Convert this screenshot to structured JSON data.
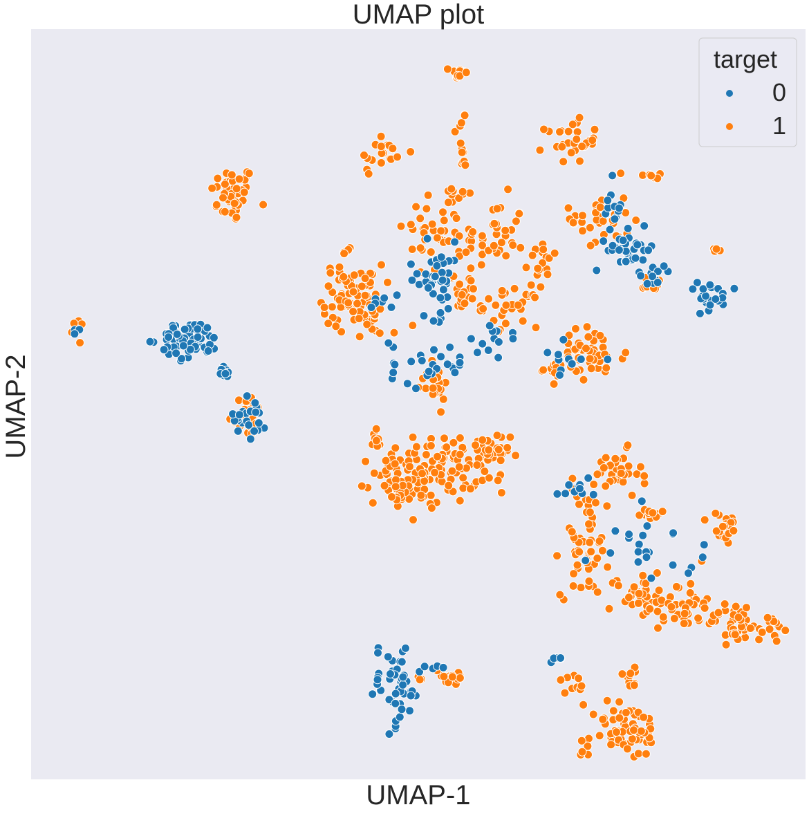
{
  "chart_data": {
    "type": "scatter",
    "title": "UMAP plot",
    "xlabel": "UMAP-1",
    "ylabel": "UMAP-2",
    "xlim": [
      0,
      100
    ],
    "ylim": [
      0,
      100
    ],
    "grid": false,
    "ticks_visible": false,
    "background": "#eaeaf2",
    "legend": {
      "title": "target",
      "placement": "top-right",
      "entries": [
        {
          "label": "0",
          "color": "#1f77b4"
        },
        {
          "label": "1",
          "color": "#ff7f0e"
        }
      ]
    },
    "series": [
      {
        "target": 0,
        "color": "#1f77b4",
        "clusters": [
          {
            "cx": 20.5,
            "cy": 58.5,
            "rx": 3.5,
            "ry": 2.3,
            "n": 70
          },
          {
            "cx": 24.8,
            "cy": 54.5,
            "rx": 1.2,
            "ry": 0.9,
            "n": 10
          },
          {
            "cx": 28.4,
            "cy": 48.6,
            "rx": 1.9,
            "ry": 2.9,
            "n": 22
          },
          {
            "cx": 6.4,
            "cy": 59.9,
            "rx": 0.7,
            "ry": 0.4,
            "n": 3
          },
          {
            "cx": 52.2,
            "cy": 66.7,
            "rx": 3.2,
            "ry": 4.5,
            "n": 40
          },
          {
            "cx": 45.3,
            "cy": 63.6,
            "rx": 1.8,
            "ry": 1.1,
            "n": 8
          },
          {
            "cx": 59.5,
            "cy": 59.0,
            "rx": 3.0,
            "ry": 1.6,
            "n": 10
          },
          {
            "cx": 52.0,
            "cy": 55.5,
            "rx": 5.2,
            "ry": 3.0,
            "n": 30
          },
          {
            "cx": 77.5,
            "cy": 70.5,
            "rx": 2.8,
            "ry": 2.3,
            "n": 35
          },
          {
            "cx": 81.0,
            "cy": 67.8,
            "rx": 1.5,
            "ry": 1.3,
            "n": 10
          },
          {
            "cx": 87.7,
            "cy": 64.0,
            "rx": 2.9,
            "ry": 1.9,
            "n": 22
          },
          {
            "cx": 74.9,
            "cy": 76.1,
            "rx": 1.2,
            "ry": 3.3,
            "n": 12
          },
          {
            "cx": 69.5,
            "cy": 56.0,
            "rx": 4.0,
            "ry": 2.5,
            "n": 10
          },
          {
            "cx": 70.1,
            "cy": 39.0,
            "rx": 2.0,
            "ry": 1.5,
            "n": 10
          },
          {
            "cx": 78.5,
            "cy": 33.0,
            "rx": 4.0,
            "ry": 3.2,
            "n": 10
          },
          {
            "cx": 82.0,
            "cy": 28.0,
            "rx": 8.5,
            "ry": 3.5,
            "n": 12
          },
          {
            "cx": 47.0,
            "cy": 12.5,
            "rx": 3.2,
            "ry": 5.0,
            "n": 45
          },
          {
            "cx": 52.0,
            "cy": 15.0,
            "rx": 1.5,
            "ry": 1.2,
            "n": 4
          },
          {
            "cx": 68.0,
            "cy": 16.0,
            "rx": 1.0,
            "ry": 0.8,
            "n": 5
          }
        ]
      },
      {
        "target": 1,
        "color": "#ff7f0e",
        "clusters": [
          {
            "cx": 26.0,
            "cy": 78.0,
            "rx": 2.6,
            "ry": 3.5,
            "n": 45
          },
          {
            "cx": 6.2,
            "cy": 59.6,
            "rx": 0.9,
            "ry": 1.6,
            "n": 10
          },
          {
            "cx": 27.7,
            "cy": 48.6,
            "rx": 2.0,
            "ry": 2.6,
            "n": 28
          },
          {
            "cx": 55.2,
            "cy": 94.1,
            "rx": 1.0,
            "ry": 0.9,
            "n": 12
          },
          {
            "cx": 55.7,
            "cy": 84.0,
            "rx": 0.6,
            "ry": 9.0,
            "n": 14
          },
          {
            "cx": 45.3,
            "cy": 83.4,
            "rx": 2.9,
            "ry": 2.8,
            "n": 18
          },
          {
            "cx": 53.1,
            "cy": 72.5,
            "rx": 4.5,
            "ry": 7.5,
            "n": 55
          },
          {
            "cx": 59.8,
            "cy": 72.0,
            "rx": 3.6,
            "ry": 5.0,
            "n": 40
          },
          {
            "cx": 69.8,
            "cy": 85.0,
            "rx": 3.0,
            "ry": 2.5,
            "n": 30
          },
          {
            "cx": 73.5,
            "cy": 75.0,
            "rx": 3.5,
            "ry": 4.5,
            "n": 35
          },
          {
            "cx": 80.5,
            "cy": 80.5,
            "rx": 1.1,
            "ry": 0.7,
            "n": 6
          },
          {
            "cx": 44.0,
            "cy": 59.5,
            "rx": 2.5,
            "ry": 1.7,
            "n": 8
          },
          {
            "cx": 41.5,
            "cy": 64.5,
            "rx": 3.5,
            "ry": 3.8,
            "n": 75
          },
          {
            "cx": 40.8,
            "cy": 70.2,
            "rx": 1.0,
            "ry": 0.7,
            "n": 6
          },
          {
            "cx": 51.9,
            "cy": 52.6,
            "rx": 2.0,
            "ry": 2.3,
            "n": 22
          },
          {
            "cx": 55.9,
            "cy": 64.4,
            "rx": 1.4,
            "ry": 2.1,
            "n": 15
          },
          {
            "cx": 62.0,
            "cy": 63.0,
            "rx": 3.2,
            "ry": 2.4,
            "n": 30
          },
          {
            "cx": 66.5,
            "cy": 69.0,
            "rx": 2.0,
            "ry": 2.0,
            "n": 15
          },
          {
            "cx": 72.0,
            "cy": 56.5,
            "rx": 4.5,
            "ry": 3.5,
            "n": 45
          },
          {
            "cx": 67.5,
            "cy": 54.5,
            "rx": 2.0,
            "ry": 1.2,
            "n": 10
          },
          {
            "cx": 80.5,
            "cy": 66.0,
            "rx": 1.3,
            "ry": 0.9,
            "n": 8
          },
          {
            "cx": 88.2,
            "cy": 70.8,
            "rx": 0.8,
            "ry": 0.5,
            "n": 4
          },
          {
            "cx": 51.0,
            "cy": 41.0,
            "rx": 6.0,
            "ry": 4.0,
            "n": 120
          },
          {
            "cx": 58.5,
            "cy": 43.0,
            "rx": 3.0,
            "ry": 3.0,
            "n": 45
          },
          {
            "cx": 44.8,
            "cy": 45.5,
            "rx": 1.0,
            "ry": 1.5,
            "n": 6
          },
          {
            "cx": 46.8,
            "cy": 38.5,
            "rx": 2.0,
            "ry": 2.5,
            "n": 15
          },
          {
            "cx": 71.5,
            "cy": 31.5,
            "rx": 2.8,
            "ry": 6.5,
            "n": 55
          },
          {
            "cx": 75.5,
            "cy": 40.5,
            "rx": 3.0,
            "ry": 3.0,
            "n": 35
          },
          {
            "cx": 80.2,
            "cy": 35.4,
            "rx": 1.4,
            "ry": 0.8,
            "n": 12
          },
          {
            "cx": 89.5,
            "cy": 33.5,
            "rx": 1.8,
            "ry": 2.0,
            "n": 22
          },
          {
            "cx": 79.0,
            "cy": 24.5,
            "rx": 3.8,
            "ry": 3.0,
            "n": 40
          },
          {
            "cx": 84.6,
            "cy": 23.5,
            "rx": 2.2,
            "ry": 3.5,
            "n": 30
          },
          {
            "cx": 91.0,
            "cy": 21.0,
            "rx": 3.2,
            "ry": 2.5,
            "n": 40
          },
          {
            "cx": 95.5,
            "cy": 20.0,
            "rx": 1.5,
            "ry": 1.6,
            "n": 15
          },
          {
            "cx": 54.0,
            "cy": 13.5,
            "rx": 2.5,
            "ry": 1.3,
            "n": 18
          },
          {
            "cx": 70.2,
            "cy": 12.0,
            "rx": 1.4,
            "ry": 2.0,
            "n": 10
          },
          {
            "cx": 77.0,
            "cy": 6.5,
            "rx": 4.0,
            "ry": 3.5,
            "n": 60
          },
          {
            "cx": 71.5,
            "cy": 4.0,
            "rx": 1.2,
            "ry": 1.0,
            "n": 5
          },
          {
            "cx": 77.5,
            "cy": 13.8,
            "rx": 1.6,
            "ry": 1.5,
            "n": 10
          }
        ]
      }
    ]
  }
}
